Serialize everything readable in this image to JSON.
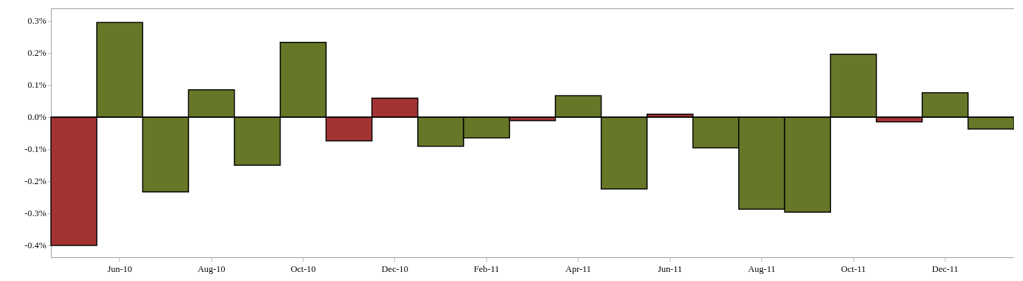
{
  "chart_data": {
    "type": "bar",
    "categories": [
      null,
      "Jun-10",
      null,
      "Aug-10",
      null,
      "Oct-10",
      null,
      "Dec-10",
      null,
      "Feb-11",
      null,
      "Apr-11",
      null,
      "Jun-11",
      null,
      "Aug-11",
      null,
      "Oct-11",
      null,
      "Dec-11",
      null
    ],
    "values": [
      -0.4,
      0.295,
      -0.233,
      0.085,
      -0.15,
      0.233,
      -0.074,
      0.059,
      -0.091,
      -0.065,
      -0.011,
      0.067,
      -0.224,
      0.009,
      -0.096,
      -0.287,
      -0.296,
      0.196,
      -0.015,
      0.076,
      -0.037
    ],
    "colors": [
      "#a33333",
      "#667728",
      "#667728",
      "#667728",
      "#667728",
      "#667728",
      "#a33333",
      "#a33333",
      "#667728",
      "#667728",
      "#a33333",
      "#667728",
      "#667728",
      "#a33333",
      "#667728",
      "#667728",
      "#667728",
      "#667728",
      "#a33333",
      "#667728",
      "#667728"
    ],
    "ylim": [
      -0.437,
      0.339
    ],
    "yticks": [
      {
        "value": -0.4,
        "label": "-0.4%"
      },
      {
        "value": -0.3,
        "label": "-0.3%"
      },
      {
        "value": -0.2,
        "label": "-0.2%"
      },
      {
        "value": -0.1,
        "label": "-0.1%"
      },
      {
        "value": 0,
        "label": "0.0%"
      },
      {
        "value": 0.1,
        "label": "0.1%"
      },
      {
        "value": 0.2,
        "label": "0.2%"
      },
      {
        "value": 0.3,
        "label": "0.3%"
      }
    ],
    "ref_lines": [
      {
        "axis": "y",
        "value": 0,
        "color": "#000000"
      }
    ],
    "grid": false
  }
}
